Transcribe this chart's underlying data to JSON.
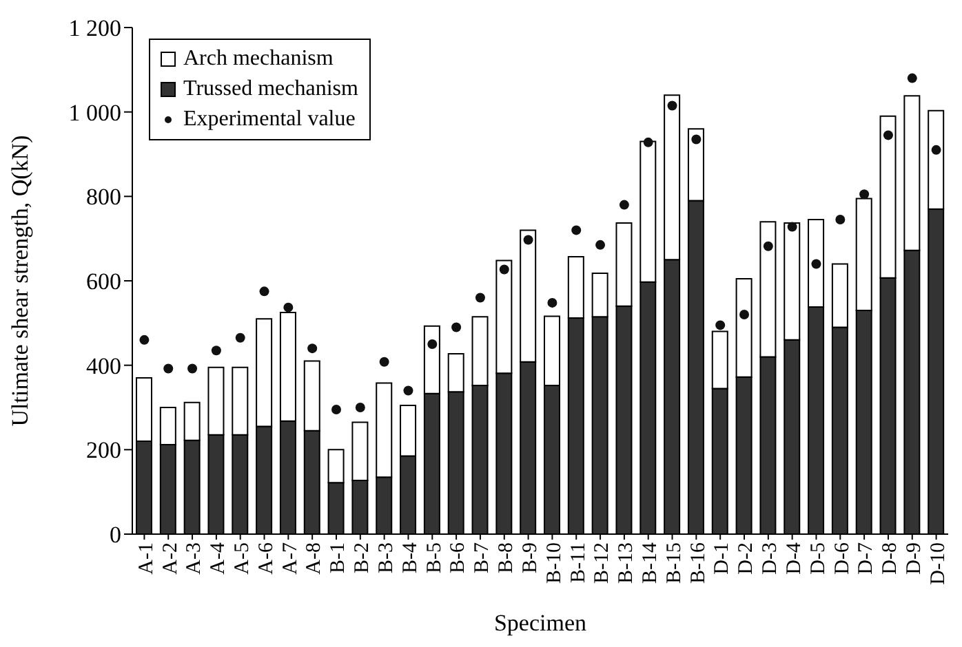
{
  "chart_data": {
    "type": "bar",
    "stacked": true,
    "xlabel": "Specimen",
    "ylabel": "Ultimate shear strength, Q(kN)",
    "categories": [
      "A-1",
      "A-2",
      "A-3",
      "A-4",
      "A-5",
      "A-6",
      "A-7",
      "A-8",
      "B-1",
      "B-2",
      "B-3",
      "B-4",
      "B-5",
      "B-6",
      "B-7",
      "B-8",
      "B-9",
      "B-10",
      "B-11",
      "B-12",
      "B-13",
      "B-14",
      "B-15",
      "B-16",
      "D-1",
      "D-2",
      "D-3",
      "D-4",
      "D-5",
      "D-6",
      "D-7",
      "D-8",
      "D-9",
      "D-10"
    ],
    "ylim": [
      0,
      1200
    ],
    "yticks": [
      0,
      200,
      400,
      600,
      800,
      {
        "value": 1000,
        "label": "1 000"
      },
      {
        "value": 1200,
        "label": "1 200"
      }
    ],
    "legend": "top left",
    "series": [
      {
        "name": "Trussed mechanism",
        "color": "#333333",
        "values": [
          220,
          212,
          222,
          235,
          235,
          255,
          268,
          245,
          122,
          127,
          135,
          185,
          333,
          337,
          352,
          381,
          408,
          352,
          512,
          515,
          540,
          597,
          650,
          790,
          345,
          372,
          420,
          460,
          538,
          490,
          530,
          607,
          672,
          770
        ]
      },
      {
        "name": "Arch mechanism",
        "color": "#ffffff",
        "values": [
          150,
          88,
          90,
          160,
          160,
          255,
          257,
          165,
          78,
          138,
          223,
          120,
          160,
          90,
          163,
          267,
          312,
          164,
          145,
          103,
          197,
          333,
          390,
          170,
          135,
          233,
          320,
          277,
          207,
          150,
          265,
          383,
          366,
          233
        ]
      },
      {
        "name": "Experimental value",
        "type": "scatter",
        "color": "#111111",
        "marker": "circle",
        "values": [
          460,
          392,
          392,
          435,
          465,
          575,
          537,
          440,
          295,
          300,
          408,
          340,
          450,
          490,
          560,
          627,
          697,
          548,
          720,
          685,
          780,
          928,
          1015,
          935,
          495,
          520,
          682,
          728,
          640,
          745,
          805,
          945,
          1080,
          910
        ]
      }
    ]
  }
}
